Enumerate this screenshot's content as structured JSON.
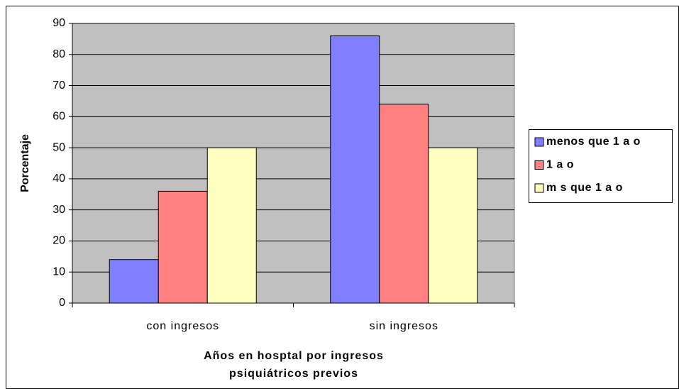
{
  "chart_data": {
    "type": "bar",
    "xlabel": "Años en hosptal por ingresos psiquiátricos previos",
    "ylabel": "Porcentaje",
    "categories": [
      "con ingresos",
      "sin ingresos"
    ],
    "series": [
      {
        "name": "menos que 1 a o",
        "color": "#8080ff",
        "values": [
          14,
          86
        ]
      },
      {
        "name": "1 a o",
        "color": "#ff8080",
        "values": [
          36,
          64
        ]
      },
      {
        "name": "m s que 1 a o",
        "color": "#ffffc0",
        "values": [
          50,
          50
        ]
      }
    ],
    "ylim": [
      0,
      90
    ],
    "yticks": [
      0,
      10,
      20,
      30,
      40,
      50,
      60,
      70,
      80,
      90
    ],
    "grid": true,
    "legend": "right",
    "plot_background": "#c0c0c0"
  }
}
